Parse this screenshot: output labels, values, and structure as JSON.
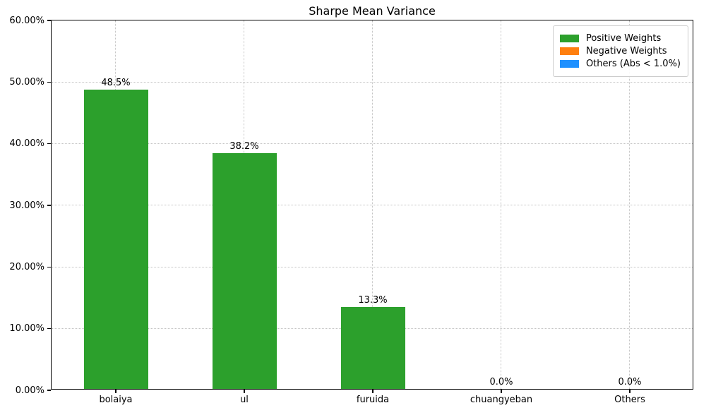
{
  "chart_data": {
    "type": "bar",
    "title": "Sharpe Mean Variance",
    "xlabel": "",
    "ylabel": "",
    "categories": [
      "bolaiya",
      "ul",
      "furuida",
      "chuangyeban",
      "Others"
    ],
    "values": [
      48.5,
      38.2,
      13.3,
      0.0,
      0.0
    ],
    "bar_labels": [
      "48.5%",
      "38.2%",
      "13.3%",
      "0.0%",
      "0.0%"
    ],
    "bar_color": "#2ca02c",
    "ylim": [
      0,
      60
    ],
    "ytick_values": [
      0,
      10,
      20,
      30,
      40,
      50,
      60
    ],
    "ytick_labels": [
      "0.00%",
      "10.00%",
      "20.00%",
      "30.00%",
      "40.00%",
      "50.00%",
      "60.00%"
    ],
    "grid": true,
    "grid_style": "dotted",
    "legend": {
      "position": "upper right",
      "entries": [
        {
          "label": "Positive Weights",
          "color": "#2ca02c"
        },
        {
          "label": "Negative Weights",
          "color": "#ff7f0e"
        },
        {
          "label": "Others (Abs < 1.0%)",
          "color": "#1e90ff"
        }
      ]
    }
  }
}
